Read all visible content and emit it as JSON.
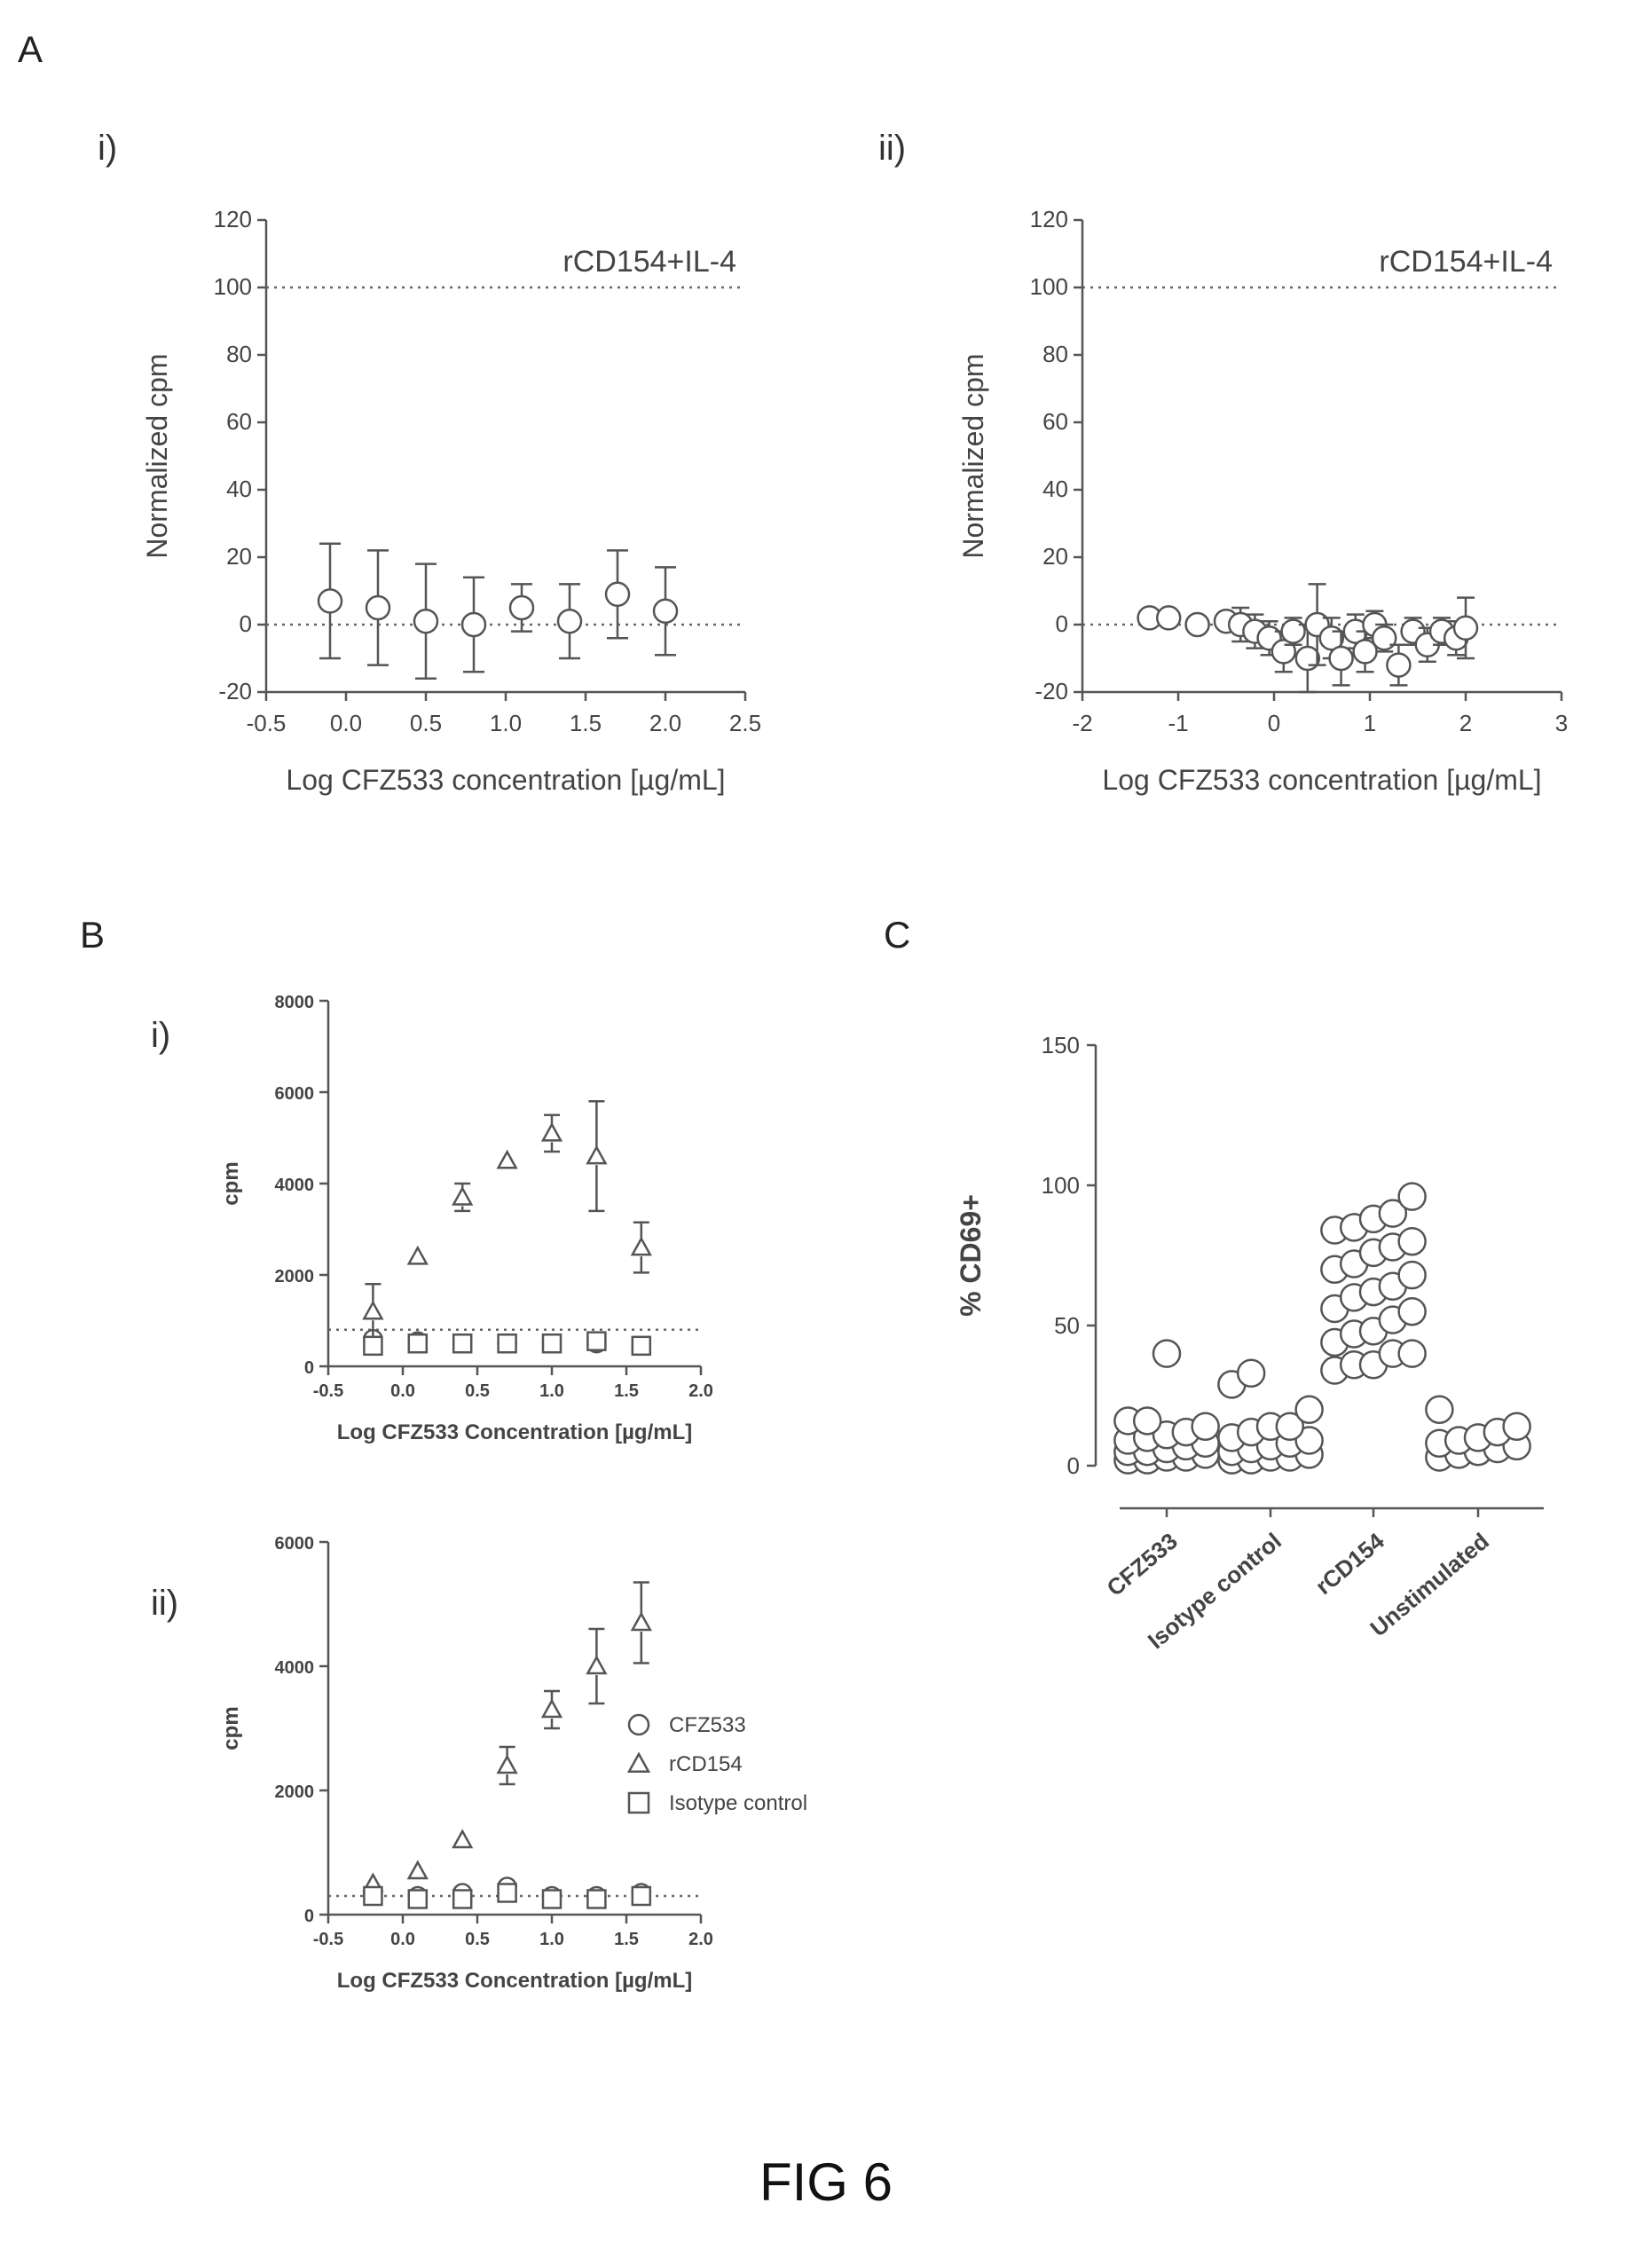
{
  "figure": {
    "panel_letters": {
      "A": "A",
      "B": "B",
      "C": "C"
    },
    "caption": "FIG 6"
  },
  "chart_data": [
    {
      "id": "Ai",
      "type": "scatter",
      "sublabel": "i)",
      "xlabel": "Log CFZ533 concentration [µg/mL]",
      "ylabel": "Normalized cpm",
      "xlim": [
        -0.5,
        2.5
      ],
      "ylim": [
        -20,
        120
      ],
      "xticks": [
        -0.5,
        0.0,
        0.5,
        1.0,
        1.5,
        2.0,
        2.5
      ],
      "xtick_labels": [
        "-0.5",
        "0.0",
        "0.5",
        "1.0",
        "1.5",
        "2.0",
        "2.5"
      ],
      "yticks": [
        -20,
        0,
        20,
        40,
        60,
        80,
        100,
        120
      ],
      "ytick_labels": [
        "-20",
        "0",
        "20",
        "40",
        "60",
        "80",
        "100",
        "120"
      ],
      "reference_lines": [
        {
          "y": 100,
          "label": "rCD154+IL-4"
        },
        {
          "y": 0,
          "label": ""
        }
      ],
      "series": [
        {
          "marker": "circle",
          "x": [
            -0.1,
            0.2,
            0.5,
            0.8,
            1.1,
            1.4,
            1.7,
            2.0
          ],
          "y": [
            7,
            5,
            1,
            0,
            5,
            1,
            9,
            4
          ],
          "err": [
            17,
            17,
            17,
            14,
            7,
            11,
            13,
            13
          ]
        }
      ]
    },
    {
      "id": "Aii",
      "type": "scatter",
      "sublabel": "ii)",
      "xlabel": "Log CFZ533 concentration [µg/mL]",
      "ylabel": "Normalized cpm",
      "xlim": [
        -2,
        3
      ],
      "ylim": [
        -20,
        120
      ],
      "xticks": [
        -2,
        -1,
        0,
        1,
        2,
        3
      ],
      "xtick_labels": [
        "-2",
        "-1",
        "0",
        "1",
        "2",
        "3"
      ],
      "yticks": [
        -20,
        0,
        20,
        40,
        60,
        80,
        100,
        120
      ],
      "ytick_labels": [
        "-20",
        "0",
        "20",
        "40",
        "60",
        "80",
        "100",
        "120"
      ],
      "reference_lines": [
        {
          "y": 100,
          "label": "rCD154+IL-4"
        },
        {
          "y": 0,
          "label": ""
        }
      ],
      "series": [
        {
          "marker": "circle",
          "x": [
            -1.3,
            -1.1,
            -0.8,
            -0.5,
            -0.35,
            -0.2,
            -0.05,
            0.1,
            0.2,
            0.35,
            0.45,
            0.6,
            0.7,
            0.85,
            0.95,
            1.05,
            1.15,
            1.3,
            1.45,
            1.6,
            1.75,
            1.9,
            2.0
          ],
          "y": [
            2,
            2,
            0,
            1,
            0,
            -2,
            -4,
            -8,
            -2,
            -10,
            0,
            -4,
            -10,
            -2,
            -8,
            0,
            -4,
            -12,
            -2,
            -6,
            -2,
            -4,
            -1
          ],
          "err": [
            0,
            0,
            0,
            2,
            5,
            5,
            5,
            6,
            4,
            10,
            12,
            6,
            8,
            5,
            6,
            4,
            4,
            6,
            4,
            5,
            4,
            5,
            9
          ]
        }
      ]
    },
    {
      "id": "Bi",
      "type": "scatter",
      "sublabel": "i)",
      "xlabel": "Log CFZ533 Concentration [µg/mL]",
      "ylabel": "cpm",
      "xlim": [
        -0.5,
        2.0
      ],
      "ylim": [
        0,
        8000
      ],
      "xticks": [
        -0.5,
        0.0,
        0.5,
        1.0,
        1.5,
        2.0
      ],
      "xtick_labels": [
        "-0.5",
        "0.0",
        "0.5",
        "1.0",
        "1.5",
        "2.0"
      ],
      "yticks": [
        0,
        2000,
        4000,
        6000,
        8000
      ],
      "ytick_labels": [
        "0",
        "2000",
        "4000",
        "6000",
        "8000"
      ],
      "reference_lines": [
        {
          "y": 800,
          "label": ""
        }
      ],
      "series": [
        {
          "name": "CFZ533",
          "marker": "circle",
          "x": [
            -0.2,
            0.1,
            0.4,
            0.7,
            1.0,
            1.3,
            1.6
          ],
          "y": [
            600,
            550,
            500,
            500,
            500,
            500,
            450
          ],
          "err": [
            0,
            0,
            0,
            0,
            0,
            0,
            0
          ]
        },
        {
          "name": "rCD154",
          "marker": "triangle",
          "x": [
            -0.2,
            0.1,
            0.4,
            0.7,
            1.0,
            1.3,
            1.6
          ],
          "y": [
            1200,
            2400,
            3700,
            4500,
            5100,
            4600,
            2600
          ],
          "err": [
            600,
            0,
            300,
            0,
            400,
            1200,
            550
          ]
        },
        {
          "name": "Isotype control",
          "marker": "square",
          "x": [
            -0.2,
            0.1,
            0.4,
            0.7,
            1.0,
            1.3,
            1.6
          ],
          "y": [
            450,
            500,
            500,
            500,
            500,
            550,
            450
          ],
          "err": [
            0,
            0,
            0,
            0,
            0,
            0,
            0
          ]
        }
      ]
    },
    {
      "id": "Bii",
      "type": "scatter",
      "sublabel": "ii)",
      "xlabel": "Log CFZ533 Concentration [µg/mL]",
      "ylabel": "cpm",
      "xlim": [
        -0.5,
        2.0
      ],
      "ylim": [
        0,
        6000
      ],
      "xticks": [
        -0.5,
        0.0,
        0.5,
        1.0,
        1.5,
        2.0
      ],
      "xtick_labels": [
        "-0.5",
        "0.0",
        "0.5",
        "1.0",
        "1.5",
        "2.0"
      ],
      "yticks": [
        0,
        2000,
        4000,
        6000
      ],
      "ytick_labels": [
        "0",
        "2000",
        "4000",
        "6000"
      ],
      "reference_lines": [
        {
          "y": 300,
          "label": ""
        }
      ],
      "legend": {
        "placement": "right",
        "entries": [
          {
            "marker": "circle",
            "label": "CFZ533"
          },
          {
            "marker": "triangle",
            "label": "rCD154"
          },
          {
            "marker": "square",
            "label": "Isotype control"
          }
        ]
      },
      "series": [
        {
          "name": "CFZ533",
          "marker": "circle",
          "x": [
            -0.2,
            0.1,
            0.4,
            0.7,
            1.0,
            1.3,
            1.6
          ],
          "y": [
            350,
            300,
            350,
            450,
            300,
            300,
            350
          ],
          "err": [
            0,
            0,
            0,
            0,
            0,
            0,
            0
          ]
        },
        {
          "name": "rCD154",
          "marker": "triangle",
          "x": [
            -0.2,
            0.1,
            0.4,
            0.7,
            1.0,
            1.3,
            1.6
          ],
          "y": [
            500,
            700,
            1200,
            2400,
            3300,
            4000,
            4700
          ],
          "err": [
            0,
            0,
            0,
            300,
            300,
            600,
            650
          ]
        },
        {
          "name": "Isotype control",
          "marker": "square",
          "x": [
            -0.2,
            0.1,
            0.4,
            0.7,
            1.0,
            1.3,
            1.6
          ],
          "y": [
            300,
            250,
            250,
            350,
            250,
            250,
            300
          ],
          "err": [
            0,
            0,
            0,
            0,
            0,
            0,
            0
          ]
        }
      ]
    },
    {
      "id": "C",
      "type": "scatter",
      "ylabel": "% CD69+",
      "ylim": [
        0,
        150
      ],
      "yticks": [
        0,
        50,
        100,
        150
      ],
      "ytick_labels": [
        "0",
        "50",
        "100",
        "150"
      ],
      "categories": [
        "CFZ533",
        "Isotype control",
        "rCD154",
        "Unstimulated"
      ],
      "series": [
        {
          "category": "CFZ533",
          "values": [
            40,
            16,
            14,
            12,
            10,
            9,
            8,
            6,
            5,
            4,
            3,
            2,
            16,
            11,
            7,
            5,
            3,
            2
          ]
        },
        {
          "category": "Isotype control",
          "values": [
            29,
            20,
            33,
            14,
            12,
            8,
            6,
            4,
            3,
            2,
            10,
            7,
            5,
            3,
            2,
            14,
            9
          ]
        },
        {
          "category": "rCD154",
          "values": [
            88,
            84,
            80,
            76,
            72,
            68,
            64,
            60,
            56,
            52,
            48,
            44,
            40,
            36,
            34,
            96,
            90,
            85,
            78,
            70,
            62,
            55,
            47,
            40,
            36
          ]
        },
        {
          "category": "Unstimulated",
          "values": [
            20,
            14,
            12,
            10,
            8,
            7,
            5,
            4,
            3,
            9,
            6
          ]
        }
      ]
    }
  ]
}
